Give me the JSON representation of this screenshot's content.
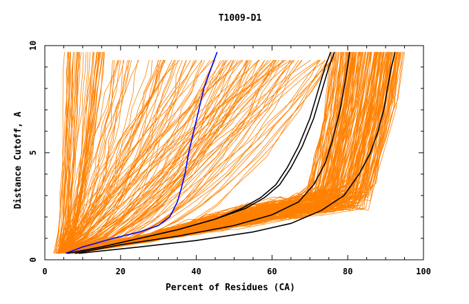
{
  "chart_data": {
    "type": "line",
    "title": "T1009-D1",
    "xlabel": "Percent of Residues (CA)",
    "ylabel": "Distance Cutoff, A",
    "xlim": [
      0,
      100
    ],
    "ylim": [
      0,
      10
    ],
    "x_ticks": [
      "0",
      "20",
      "40",
      "60",
      "80",
      "100"
    ],
    "y_ticks": [
      "0",
      "5",
      "10"
    ],
    "x_tick_values": [
      0,
      20,
      40,
      60,
      80,
      100
    ],
    "y_tick_values": [
      0,
      5,
      10
    ],
    "grid": false,
    "colors": {
      "background_curves": "#ff8000",
      "black_curves": "#000000",
      "highlight": "#0000ff"
    },
    "series": [
      {
        "color": "#0000ff",
        "x": [
          5.5,
          10,
          18,
          25,
          30,
          33,
          35,
          36,
          37,
          38,
          40,
          42,
          44,
          45.5
        ],
        "y": [
          0.3,
          0.6,
          1.0,
          1.3,
          1.6,
          2.0,
          2.7,
          3.3,
          4.0,
          5.0,
          6.5,
          8.0,
          9.0,
          9.7
        ]
      },
      {
        "color": "#000000",
        "x": [
          6,
          15,
          25,
          35,
          45,
          52,
          57,
          61,
          64,
          67,
          70,
          72,
          74,
          75.5
        ],
        "y": [
          0.3,
          0.6,
          1.0,
          1.4,
          1.9,
          2.4,
          2.9,
          3.5,
          4.3,
          5.3,
          6.6,
          7.8,
          9.0,
          9.7
        ]
      },
      {
        "color": "#000000",
        "x": [
          6,
          15,
          25,
          35,
          45,
          53,
          58,
          62,
          65,
          68,
          71,
          73,
          75,
          76.5
        ],
        "y": [
          0.3,
          0.6,
          1.0,
          1.4,
          1.9,
          2.4,
          2.9,
          3.5,
          4.3,
          5.3,
          6.6,
          7.8,
          9.0,
          9.7
        ]
      },
      {
        "color": "#000000",
        "x": [
          8,
          20,
          35,
          50,
          60,
          67,
          71,
          74,
          76,
          78,
          79.5,
          80.5
        ],
        "y": [
          0.3,
          0.7,
          1.1,
          1.6,
          2.1,
          2.7,
          3.5,
          4.5,
          5.6,
          7.0,
          8.5,
          9.7
        ]
      },
      {
        "color": "#000000",
        "x": [
          9,
          25,
          40,
          55,
          65,
          73,
          79,
          83,
          86,
          88,
          89.5,
          90.5,
          91.5,
          92.5
        ],
        "y": [
          0.3,
          0.6,
          0.9,
          1.3,
          1.7,
          2.3,
          3.0,
          4.0,
          5.0,
          6.0,
          7.0,
          8.0,
          9.0,
          9.7
        ]
      }
    ]
  }
}
